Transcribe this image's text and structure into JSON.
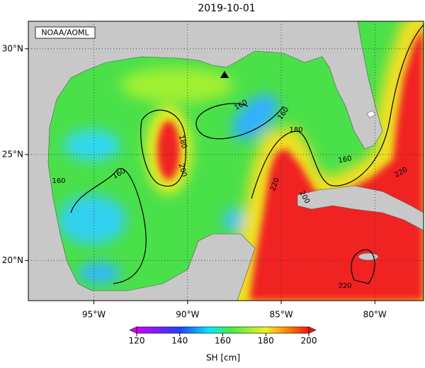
{
  "title": "2019-10-01",
  "credit": "NOAA/AOML",
  "map": {
    "xlim": [
      -98.5,
      -77.4
    ],
    "ylim": [
      18.1,
      31.3
    ],
    "xticks": [
      {
        "value": -95,
        "label": "95°W"
      },
      {
        "value": -90,
        "label": "90°W"
      },
      {
        "value": -85,
        "label": "85°W"
      },
      {
        "value": -80,
        "label": "80°W"
      }
    ],
    "yticks": [
      {
        "value": 20,
        "label": "20°N"
      },
      {
        "value": 25,
        "label": "25°N"
      },
      {
        "value": 30,
        "label": "30°N"
      }
    ],
    "grid": true
  },
  "contour_labels": [
    160,
    160,
    180,
    180,
    200,
    160,
    160,
    160,
    220,
    200,
    220,
    220
  ],
  "colorbar": {
    "clim": [
      120,
      200
    ],
    "ticks": [
      120,
      140,
      160,
      180,
      200
    ],
    "label": "SH [cm]"
  }
}
